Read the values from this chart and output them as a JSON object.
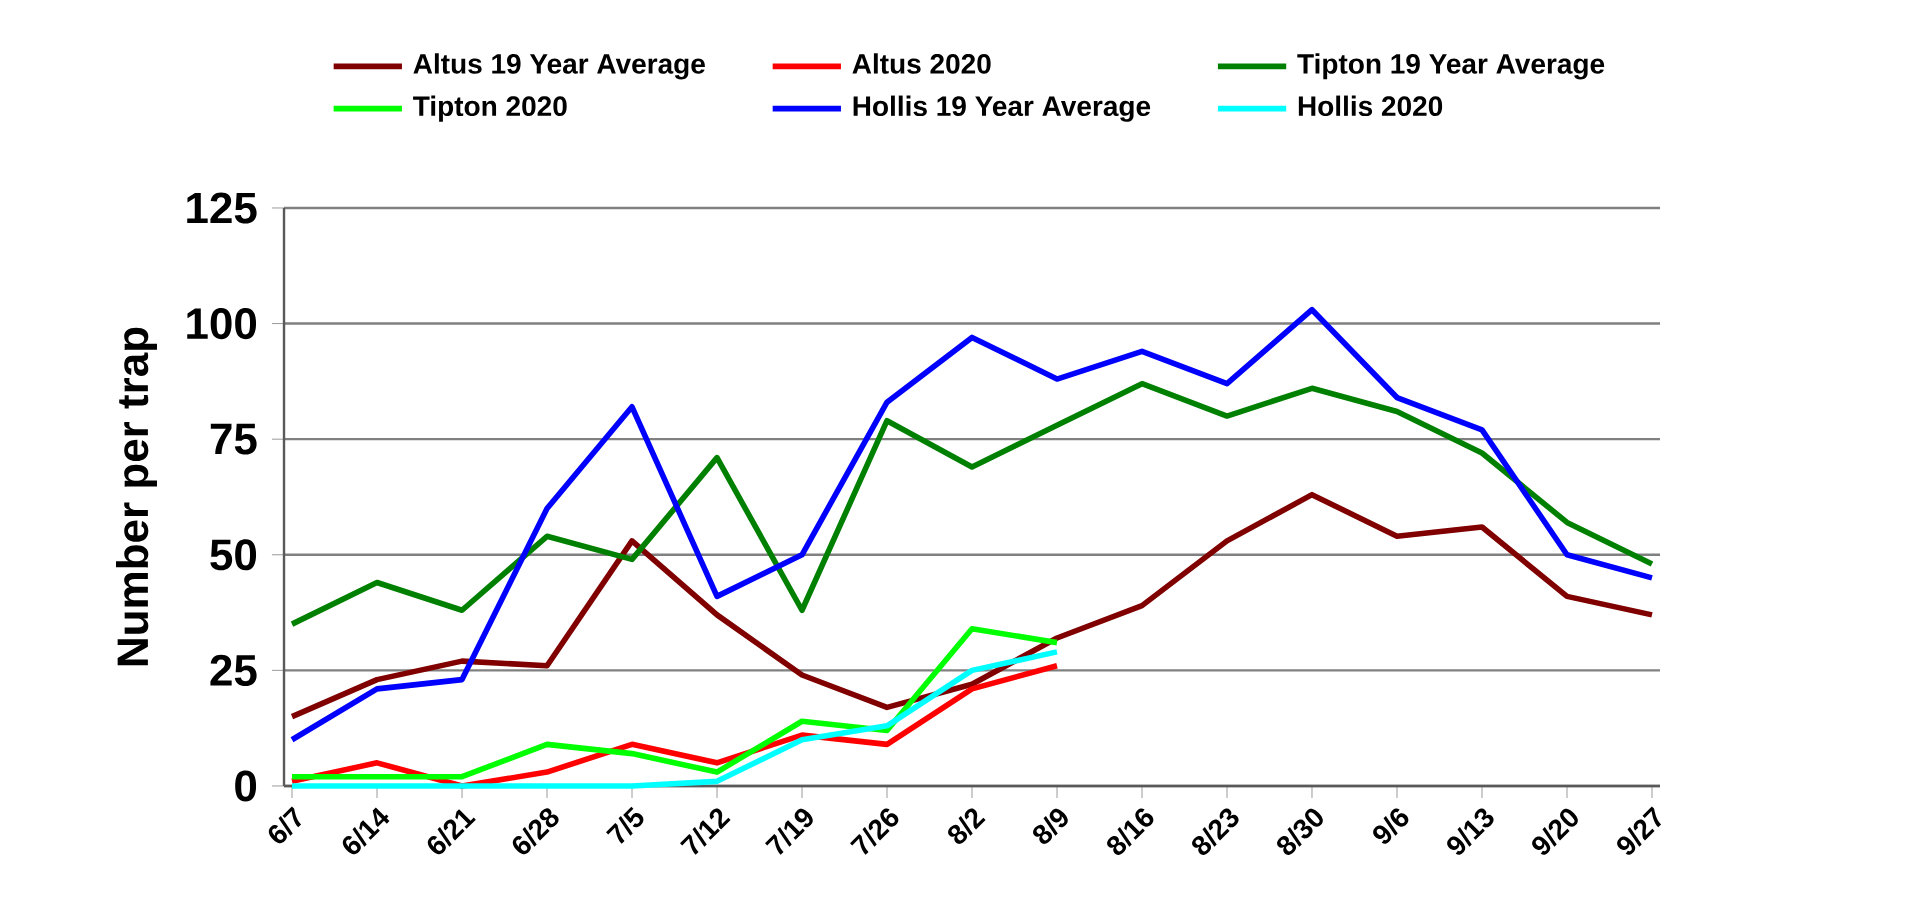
{
  "chart_data": {
    "type": "line",
    "ylabel": "Number  per trap",
    "categories": [
      "6/7",
      "6/14",
      "6/21",
      "6/28",
      "7/5",
      "7/12",
      "7/19",
      "7/26",
      "8/2",
      "8/9",
      "8/16",
      "8/23",
      "8/30",
      "9/6",
      "9/13",
      "9/20",
      "9/27"
    ],
    "series": [
      {
        "name": "Altus 19 Year Average",
        "color": "#800000",
        "values": [
          15,
          23,
          27,
          26,
          53,
          37,
          24,
          17,
          22,
          32,
          39,
          53,
          63,
          54,
          56,
          41,
          37
        ]
      },
      {
        "name": "Altus 2020",
        "color": "#ff0000",
        "values": [
          1,
          5,
          0,
          3,
          9,
          5,
          11,
          9,
          21,
          26,
          null,
          null,
          null,
          null,
          null,
          null,
          null
        ]
      },
      {
        "name": "Tipton 19 Year Average",
        "color": "#008000",
        "values": [
          35,
          44,
          38,
          54,
          49,
          71,
          38,
          79,
          69,
          78,
          87,
          80,
          86,
          81,
          72,
          57,
          48
        ]
      },
      {
        "name": "Tipton 2020",
        "color": "#00ff00",
        "values": [
          2,
          2,
          2,
          9,
          7,
          3,
          14,
          12,
          34,
          31,
          null,
          null,
          null,
          null,
          null,
          null,
          null
        ]
      },
      {
        "name": "Hollis 19 Year Average",
        "color": "#0000ff",
        "values": [
          10,
          21,
          23,
          60,
          82,
          41,
          50,
          83,
          97,
          88,
          94,
          87,
          103,
          84,
          77,
          50,
          45
        ]
      },
      {
        "name": "Hollis 2020",
        "color": "#00ffff",
        "values": [
          0,
          0,
          0,
          0,
          0,
          1,
          10,
          13,
          25,
          29,
          null,
          null,
          null,
          null,
          null,
          null,
          null
        ]
      }
    ],
    "ylim": [
      0,
      125
    ],
    "yticks": [
      0,
      25,
      50,
      75,
      100,
      125
    ],
    "grid": "y",
    "legend": "top",
    "marker": "none",
    "line_style": "solid"
  }
}
